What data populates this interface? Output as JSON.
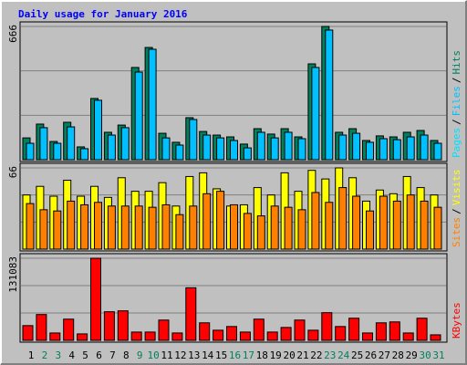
{
  "chart_data": [
    {
      "type": "bar",
      "title": "Daily usage for January 2016",
      "ylim": [
        0,
        666
      ],
      "yticks": [
        666
      ],
      "grid_lines": 3,
      "legend_separator": "/",
      "series": [
        {
          "name": "Hits",
          "color": "#00805c",
          "values": [
            109,
            178,
            91,
            187,
            64,
            306,
            137,
            173,
            461,
            561,
            132,
            87,
            210,
            141,
            123,
            114,
            78,
            155,
            128,
            155,
            114,
            479,
            666,
            137,
            155,
            96,
            119,
            114,
            137,
            146,
            96
          ]
        },
        {
          "name": "Files",
          "color": "#00c0ff",
          "values": [
            82,
            160,
            82,
            164,
            55,
            297,
            123,
            160,
            438,
            552,
            109,
            73,
            201,
            123,
            109,
            96,
            59,
            137,
            109,
            137,
            105,
            461,
            648,
            123,
            132,
            87,
            105,
            100,
            114,
            123,
            82
          ]
        },
        {
          "name": "Pages",
          "color": "#00e0ff",
          "values": [
            null,
            null,
            null,
            null,
            null,
            null,
            null,
            null,
            null,
            null,
            null,
            null,
            null,
            null,
            null,
            null,
            null,
            null,
            null,
            null,
            null,
            null,
            null,
            null,
            null,
            null,
            null,
            null,
            null,
            null,
            null
          ]
        }
      ]
    },
    {
      "type": "bar",
      "ylim": [
        0,
        66
      ],
      "yticks": [
        66
      ],
      "grid_lines": 3,
      "legend_separator": "/",
      "series": [
        {
          "name": "Visits",
          "color": "#ffff00",
          "values": [
            44,
            51,
            43,
            56,
            43,
            51,
            42,
            58,
            47,
            47,
            54,
            35,
            59,
            62,
            49,
            35,
            36,
            50,
            44,
            62,
            47,
            64,
            57,
            66,
            58,
            39,
            48,
            45,
            59,
            50,
            44
          ]
        },
        {
          "name": "Sites",
          "color": "#ff8000",
          "values": [
            37,
            32,
            31,
            39,
            36,
            38,
            35,
            35,
            35,
            34,
            36,
            28,
            35,
            45,
            47,
            36,
            29,
            27,
            35,
            34,
            32,
            46,
            38,
            50,
            43,
            31,
            43,
            39,
            44,
            39,
            34
          ]
        }
      ]
    },
    {
      "type": "bar",
      "ylim": [
        0,
        131083
      ],
      "yticks": [
        131083
      ],
      "grid_lines": 3,
      "categories": [
        "1",
        "2",
        "3",
        "4",
        "5",
        "6",
        "7",
        "8",
        "9",
        "10",
        "11",
        "12",
        "13",
        "14",
        "15",
        "16",
        "17",
        "18",
        "19",
        "20",
        "21",
        "22",
        "23",
        "24",
        "25",
        "26",
        "27",
        "28",
        "29",
        "30",
        "31"
      ],
      "category_colors": [
        "#000000",
        "#00805c",
        "#00805c",
        "#000000",
        "#000000",
        "#000000",
        "#000000",
        "#000000",
        "#00805c",
        "#00805c",
        "#000000",
        "#000000",
        "#000000",
        "#000000",
        "#000000",
        "#00805c",
        "#00805c",
        "#000000",
        "#000000",
        "#000000",
        "#000000",
        "#000000",
        "#00805c",
        "#00805c",
        "#000000",
        "#000000",
        "#000000",
        "#000000",
        "#000000",
        "#00805c",
        "#00805c"
      ],
      "series": [
        {
          "name": "KBytes",
          "color": "#ff0000",
          "values": [
            23566,
            41240,
            11780,
            33880,
            10310,
            131083,
            45660,
            47130,
            13260,
            13260,
            32400,
            11780,
            83960,
            27990,
            16200,
            22100,
            13260,
            33880,
            13260,
            20620,
            32400,
            16200,
            44190,
            22100,
            35350,
            11780,
            27990,
            29460,
            11780,
            35350,
            8840
          ]
        }
      ]
    }
  ]
}
